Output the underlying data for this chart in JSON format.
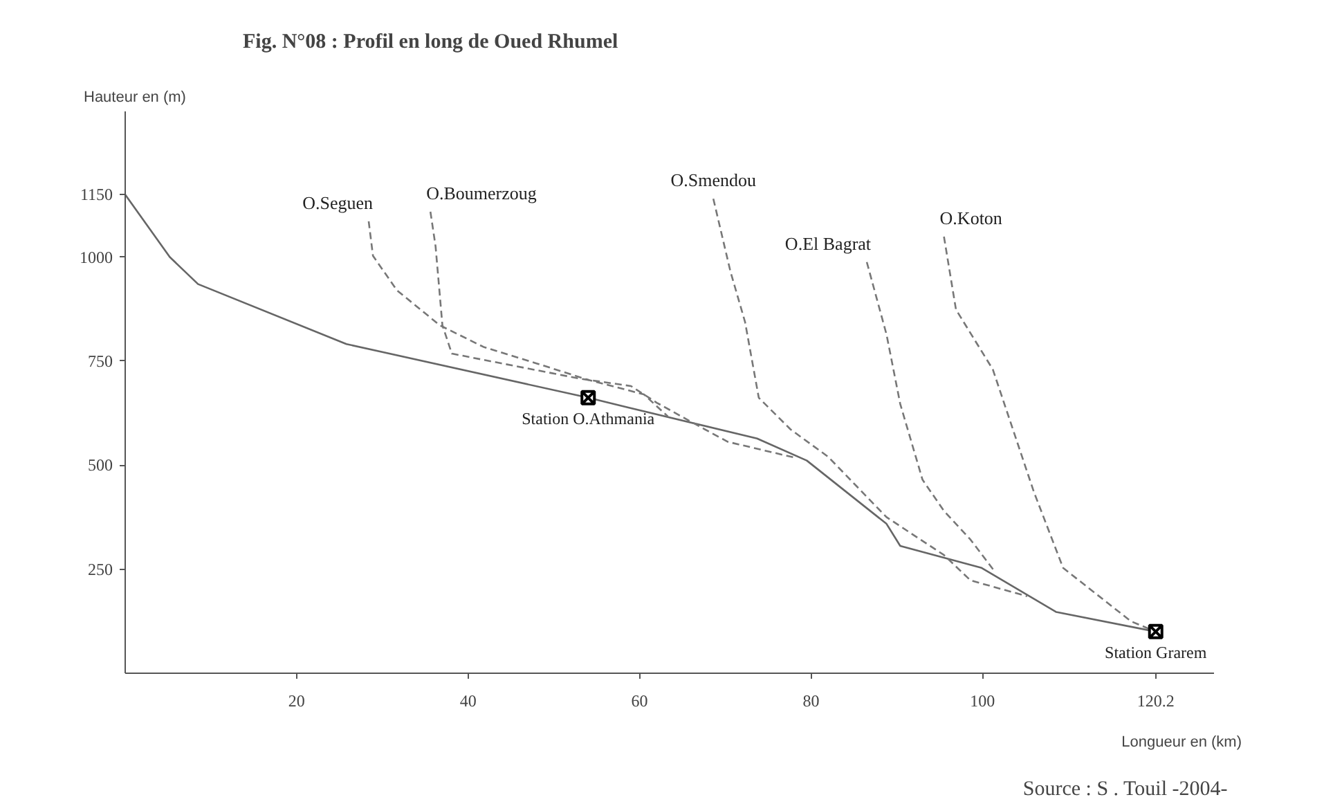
{
  "chart_data": {
    "type": "line",
    "title": "Fig. N°08 : Profil en long de Oued Rhumel",
    "xlabel": "Longueur en (km)",
    "ylabel": "Hauteur en (m)",
    "xlim": [
      0,
      127
    ],
    "ylim": [
      0,
      1350
    ],
    "xticks": [
      20,
      40,
      60,
      80,
      100,
      120.2
    ],
    "yticks": [
      250,
      500,
      750,
      1000,
      1150
    ],
    "grid": false,
    "series": [
      {
        "color": "#666666",
        "line_style": "solid",
        "x": [
          0,
          5.2,
          8.5,
          25.8,
          54,
          58.6,
          73.7,
          79.5,
          88.8,
          90.4,
          99.9,
          108.6,
          120.2
        ],
        "values": [
          1150,
          1000,
          935,
          791,
          662,
          639,
          564,
          511,
          359,
          306,
          253,
          147,
          100
        ]
      },
      {
        "name": "O.Seguen",
        "color": "#777777",
        "line_style": "dashed",
        "x": [
          28.4,
          28.9,
          31.7,
          36.7,
          41.8,
          47.9,
          54,
          60.5,
          63.3
        ],
        "values": [
          1086,
          1003,
          920,
          836,
          784,
          745,
          705,
          670,
          617
        ]
      },
      {
        "name": "O.Boumerzoug",
        "color": "#777777",
        "line_style": "dashed",
        "x": [
          35.6,
          36.2,
          37.0,
          38.1,
          41.8,
          53,
          59,
          62,
          66.9,
          70.3,
          78.1
        ],
        "values": [
          1109,
          1026,
          836,
          768,
          753,
          708,
          690,
          650,
          594,
          556,
          518
        ]
      },
      {
        "name": "O.Smendou",
        "color": "#777777",
        "line_style": "dashed",
        "x": [
          68.6,
          70.6,
          72.3,
          73.9,
          77.6,
          82,
          88.8,
          95.5,
          98.6,
          105.2
        ],
        "values": [
          1140,
          965,
          844,
          662,
          586,
          520,
          375,
          284,
          223,
          185
        ]
      },
      {
        "name": "O.El Bagrat",
        "color": "#777777",
        "line_style": "dashed",
        "x": [
          86.5,
          88.8,
          90.4,
          93.0,
          95.5,
          98.6,
          101.4
        ],
        "values": [
          988,
          814,
          647,
          465,
          390,
          321,
          245
        ]
      },
      {
        "name": "O.Koton",
        "color": "#777777",
        "line_style": "dashed",
        "x": [
          95.5,
          96.9,
          101.2,
          106.0,
          109.4,
          117.3,
          120.2
        ],
        "values": [
          1049,
          874,
          730,
          435,
          253,
          125,
          100
        ]
      }
    ],
    "annotations": [
      {
        "text": "Station O.Athmania",
        "x": 54,
        "y": 662
      },
      {
        "text": "Station Grarem",
        "x": 120.2,
        "y": 100
      },
      "Source : S . Touil -2004-"
    ]
  }
}
